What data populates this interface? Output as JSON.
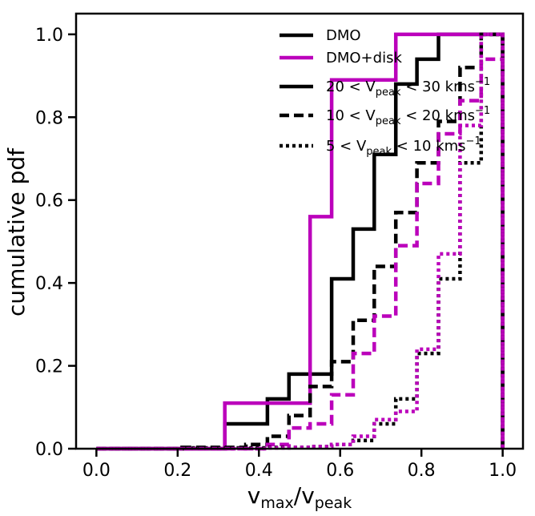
{
  "chart_data": {
    "type": "line",
    "subtype": "step-cumulative-histogram",
    "xlabel": "v_max/v_peak",
    "ylabel": "cumulative pdf",
    "xlim": [
      -0.05,
      1.05
    ],
    "ylim": [
      0.0,
      1.05
    ],
    "xticks": [
      "0.0",
      "0.2",
      "0.4",
      "0.6",
      "0.8",
      "1.0"
    ],
    "yticks": [
      "0.0",
      "0.2",
      "0.4",
      "0.6",
      "0.8",
      "1.0"
    ],
    "grid": false,
    "legend_position": "top-right",
    "bin_edges": [
      0.0,
      0.053,
      0.105,
      0.158,
      0.211,
      0.263,
      0.316,
      0.368,
      0.421,
      0.474,
      0.526,
      0.579,
      0.632,
      0.684,
      0.737,
      0.789,
      0.842,
      0.895,
      0.947,
      1.0
    ],
    "series": [
      {
        "key": "dmo_hi",
        "color": "#000000",
        "dash": "solid",
        "values": [
          0,
          0,
          0,
          0,
          0,
          0,
          0.06,
          0.06,
          0.12,
          0.18,
          0.18,
          0.41,
          0.53,
          0.71,
          0.88,
          0.94,
          1.0,
          1.0,
          1.0
        ]
      },
      {
        "key": "disk_hi",
        "color": "#bb00bb",
        "dash": "solid",
        "values": [
          0,
          0,
          0,
          0,
          0,
          0,
          0.11,
          0.11,
          0.11,
          0.11,
          0.56,
          0.89,
          0.89,
          0.89,
          1.0,
          1.0,
          1.0,
          1.0,
          1.0
        ]
      },
      {
        "key": "dmo_mid",
        "color": "#000000",
        "dash": "dashed",
        "values": [
          0,
          0,
          0,
          0,
          0.003,
          0.003,
          0.003,
          0.01,
          0.03,
          0.08,
          0.15,
          0.21,
          0.31,
          0.44,
          0.57,
          0.69,
          0.79,
          0.92,
          1.0
        ]
      },
      {
        "key": "disk_mid",
        "color": "#bb00bb",
        "dash": "dashed",
        "values": [
          0,
          0,
          0,
          0,
          0,
          0,
          0,
          0,
          0.01,
          0.05,
          0.06,
          0.13,
          0.23,
          0.32,
          0.49,
          0.64,
          0.76,
          0.84,
          0.94
        ]
      },
      {
        "key": "dmo_lo",
        "color": "#000000",
        "dash": "dotted",
        "values": [
          0,
          0,
          0,
          0,
          0.002,
          0.002,
          0.002,
          0.002,
          0.003,
          0.003,
          0.005,
          0.01,
          0.02,
          0.06,
          0.12,
          0.23,
          0.41,
          0.69,
          1.0
        ]
      },
      {
        "key": "disk_lo",
        "color": "#bb00bb",
        "dash": "dotted",
        "values": [
          0,
          0,
          0,
          0,
          0,
          0,
          0,
          0,
          0.002,
          0.003,
          0.005,
          0.01,
          0.03,
          0.07,
          0.09,
          0.24,
          0.47,
          0.78,
          1.0
        ]
      }
    ],
    "legend": [
      {
        "label_main": "DMO",
        "label_sub": "",
        "label_rest": "",
        "label_sup": "",
        "color": "#000000",
        "dash": "solid"
      },
      {
        "label_main": "DMO+disk",
        "label_sub": "",
        "label_rest": "",
        "label_sup": "",
        "color": "#bb00bb",
        "dash": "solid"
      },
      {
        "label_main": "20 < V",
        "label_sub": "peak",
        "label_rest": " < 30 kms",
        "label_sup": "−1",
        "color": "#000000",
        "dash": "dashed_style_solid"
      },
      {
        "label_main": "10 < V",
        "label_sub": "peak",
        "label_rest": " < 20 kms",
        "label_sup": "−1",
        "color": "#000000",
        "dash": "dashed"
      },
      {
        "label_main": "5 < V",
        "label_sub": "peak",
        "label_rest": " < 10 kms",
        "label_sup": "−1",
        "color": "#000000",
        "dash": "dotted"
      }
    ]
  },
  "axes_text": {
    "x_main": "v",
    "x_sub1": "max",
    "x_mid": "/v",
    "x_sub2": "peak",
    "y_label": "cumulative pdf"
  }
}
